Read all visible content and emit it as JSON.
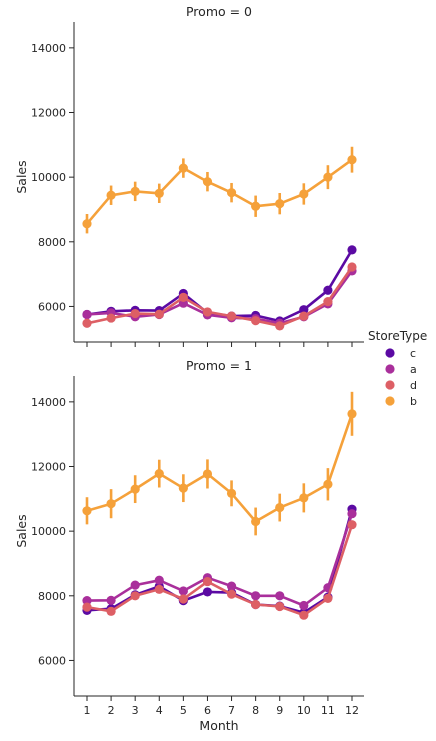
{
  "chart_data": {
    "type": "line",
    "x": [
      1,
      2,
      3,
      4,
      5,
      6,
      7,
      8,
      9,
      10,
      11,
      12
    ],
    "xlabel": "Month",
    "ylabel": "Sales",
    "ylim": [
      4900,
      14800
    ],
    "yticks": [
      6000,
      8000,
      10000,
      12000,
      14000
    ],
    "legend": {
      "title": "StoreType",
      "placement": "right",
      "entries": [
        "c",
        "a",
        "d",
        "b"
      ]
    },
    "colors": {
      "c": "#5b0aa3",
      "a": "#a92f9b",
      "d": "#dd5f65",
      "b": "#f5a13a"
    },
    "panels": [
      {
        "title": "Promo = 0",
        "series": [
          {
            "name": "c",
            "values": [
              5750,
              5850,
              5880,
              5870,
              6400,
              5800,
              5700,
              5720,
              5550,
              5900,
              6500,
              7750
            ],
            "err": [
              60,
              60,
              60,
              60,
              80,
              60,
              60,
              60,
              60,
              70,
              90,
              110
            ]
          },
          {
            "name": "a",
            "values": [
              5750,
              5800,
              5680,
              5750,
              6100,
              5740,
              5650,
              5620,
              5480,
              5680,
              6080,
              7100
            ],
            "err": [
              50,
              50,
              50,
              50,
              60,
              50,
              50,
              50,
              50,
              50,
              60,
              80
            ]
          },
          {
            "name": "d",
            "values": [
              5480,
              5640,
              5780,
              5760,
              6280,
              5830,
              5700,
              5560,
              5400,
              5700,
              6150,
              7220
            ],
            "err": [
              60,
              60,
              60,
              60,
              70,
              60,
              60,
              60,
              60,
              60,
              70,
              90
            ]
          },
          {
            "name": "b",
            "values": [
              8560,
              9440,
              9560,
              9500,
              10280,
              9860,
              9520,
              9100,
              9180,
              9480,
              10000,
              10540
            ],
            "err": [
              300,
              300,
              300,
              300,
              300,
              300,
              300,
              330,
              330,
              330,
              370,
              400
            ]
          }
        ]
      },
      {
        "title": "Promo = 1",
        "series": [
          {
            "name": "c",
            "values": [
              7550,
              7600,
              8030,
              8290,
              7850,
              8120,
              8100,
              7730,
              7680,
              7480,
              7960,
              10680
            ],
            "err": [
              70,
              70,
              80,
              80,
              80,
              80,
              80,
              80,
              80,
              80,
              90,
              130
            ]
          },
          {
            "name": "a",
            "values": [
              7850,
              7860,
              8330,
              8480,
              8150,
              8560,
              8300,
              8000,
              8000,
              7700,
              8250,
              10540
            ],
            "err": [
              60,
              60,
              70,
              70,
              60,
              70,
              70,
              60,
              60,
              60,
              70,
              110
            ]
          },
          {
            "name": "d",
            "values": [
              7650,
              7520,
              8000,
              8200,
              7900,
              8440,
              8050,
              7730,
              7670,
              7400,
              7920,
              10200
            ],
            "err": [
              70,
              70,
              80,
              80,
              80,
              80,
              80,
              80,
              80,
              80,
              90,
              120
            ]
          },
          {
            "name": "b",
            "values": [
              10630,
              10850,
              11300,
              11780,
              11330,
              11770,
              11170,
              10300,
              10730,
              11030,
              11450,
              13630
            ],
            "err": [
              420,
              450,
              430,
              430,
              430,
              450,
              400,
              430,
              430,
              450,
              500,
              680
            ]
          }
        ]
      }
    ]
  }
}
